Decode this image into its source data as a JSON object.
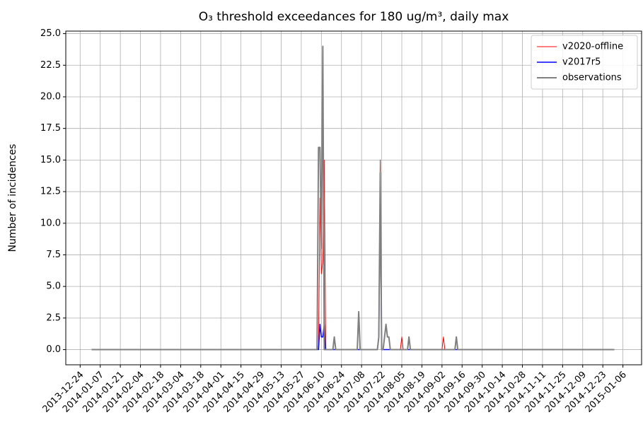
{
  "chart_data": {
    "type": "line",
    "title": "O₃ threshold exceedances for 180 ug/m³, daily max",
    "y_label": "Number of incidences",
    "x": [
      "2014-01-01",
      "2014-06-07",
      "2014-06-08",
      "2014-06-09",
      "2014-06-10",
      "2014-06-11",
      "2014-06-12",
      "2014-06-13",
      "2014-06-18",
      "2014-06-19",
      "2014-06-20",
      "2014-07-05",
      "2014-07-06",
      "2014-07-07",
      "2014-07-19",
      "2014-07-20",
      "2014-07-21",
      "2014-07-22",
      "2014-07-23",
      "2014-07-24",
      "2014-07-25",
      "2014-07-26",
      "2014-07-27",
      "2014-07-28",
      "2014-08-04",
      "2014-08-05",
      "2014-08-06",
      "2014-08-09",
      "2014-08-10",
      "2014-08-11",
      "2014-09-02",
      "2014-09-03",
      "2014-09-04",
      "2014-09-11",
      "2014-09-12",
      "2014-09-13",
      "2014-12-31"
    ],
    "series": [
      {
        "name": "v2020-offline",
        "color": "#ff0000",
        "width": 1,
        "values": [
          0,
          0,
          0,
          12,
          6,
          7,
          15,
          0,
          0,
          0,
          0,
          0,
          0,
          0,
          0,
          1,
          15,
          0,
          0,
          0,
          0,
          0,
          0,
          0,
          0,
          1,
          0,
          0,
          0,
          0,
          0,
          1,
          0,
          0,
          0,
          0,
          0
        ]
      },
      {
        "name": "v2017r5",
        "color": "#0000ff",
        "width": 1.5,
        "values": [
          0,
          0,
          0,
          2,
          1,
          1,
          2,
          0,
          0,
          0,
          0,
          0,
          0,
          0,
          0,
          1,
          12,
          0,
          0,
          0,
          0,
          0,
          0,
          0,
          0,
          0,
          0,
          0,
          0,
          0,
          0,
          0,
          0,
          0,
          0,
          0,
          0
        ]
      },
      {
        "name": "observations",
        "color": "#808080",
        "width": 2,
        "values": [
          0,
          0,
          16,
          16,
          8,
          24,
          0,
          0,
          0,
          1,
          0,
          0,
          3,
          0,
          0,
          1,
          14,
          0,
          0,
          1,
          2,
          1,
          1,
          0,
          0,
          0,
          0,
          0,
          1,
          0,
          0,
          0,
          0,
          0,
          1,
          0,
          0
        ]
      }
    ],
    "xlim": [
      "2013-12-14",
      "2015-01-19"
    ],
    "xticks": [
      "2013-12-24",
      "2014-01-07",
      "2014-01-21",
      "2014-02-04",
      "2014-02-18",
      "2014-03-04",
      "2014-03-18",
      "2014-04-01",
      "2014-04-15",
      "2014-04-29",
      "2014-05-13",
      "2014-05-27",
      "2014-06-10",
      "2014-06-24",
      "2014-07-08",
      "2014-07-22",
      "2014-08-05",
      "2014-08-19",
      "2014-09-02",
      "2014-09-16",
      "2014-09-30",
      "2014-10-14",
      "2014-10-28",
      "2014-11-11",
      "2014-11-25",
      "2014-12-09",
      "2014-12-23",
      "2015-01-06"
    ],
    "ylim": [
      -1.2,
      25.2
    ],
    "yticks": [
      {
        "value": 0,
        "label": "0.0"
      },
      2.5,
      {
        "value": 5,
        "label": "5.0"
      },
      7.5,
      {
        "value": 10,
        "label": "10.0"
      },
      12.5,
      {
        "value": 15,
        "label": "15.0"
      },
      17.5,
      {
        "value": 20,
        "label": "20.0"
      },
      22.5,
      {
        "value": 25,
        "label": "25.0"
      }
    ],
    "grid": true,
    "legend": "upper right"
  }
}
